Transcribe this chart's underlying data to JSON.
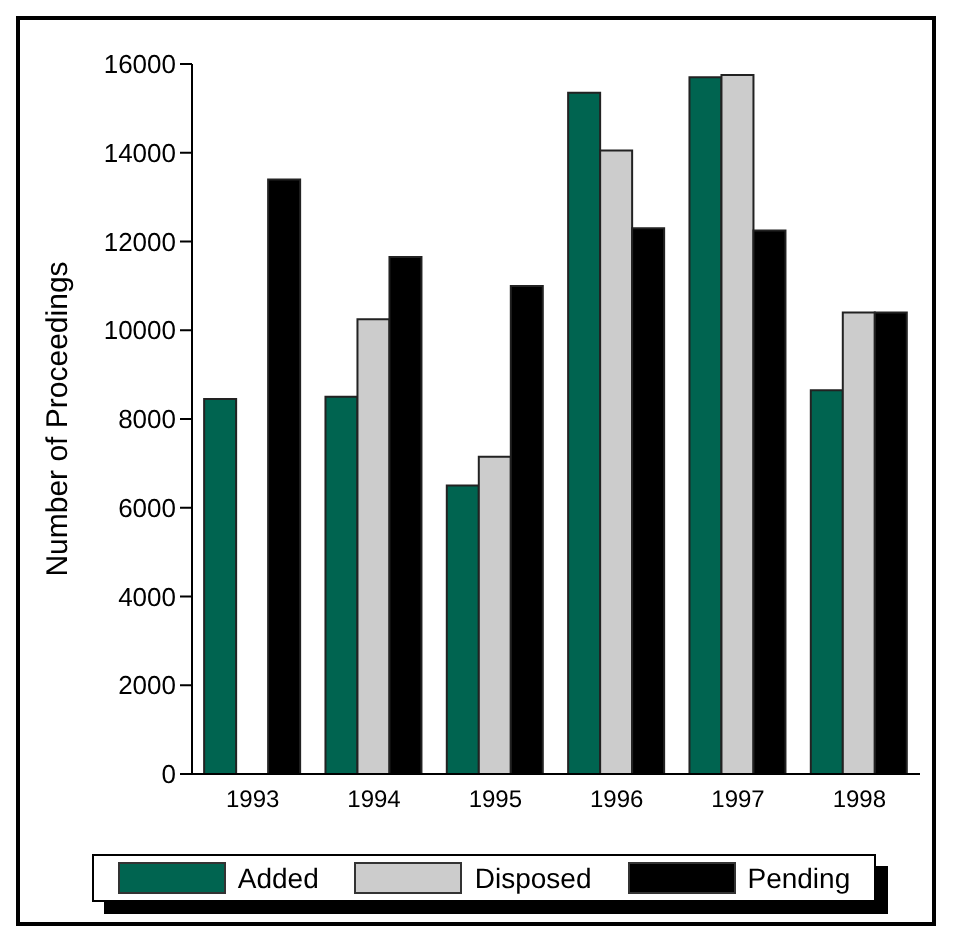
{
  "chart_data": {
    "type": "bar",
    "ylabel": "Number of Proceedings",
    "categories": [
      "1993",
      "1994",
      "1995",
      "1996",
      "1997",
      "1998"
    ],
    "series": [
      {
        "name": "Added",
        "color": "#006450",
        "values": [
          8450,
          8500,
          6500,
          15350,
          15700,
          8650
        ]
      },
      {
        "name": "Disposed",
        "color": "#cccccc",
        "values": [
          0,
          10250,
          7150,
          14050,
          15750,
          10400
        ]
      },
      {
        "name": "Pending",
        "color": "#000000",
        "values": [
          13400,
          11650,
          11000,
          12300,
          12250,
          10400
        ]
      }
    ],
    "ylim": [
      0,
      16000
    ],
    "yticks": [
      0,
      2000,
      4000,
      6000,
      8000,
      10000,
      12000,
      14000,
      16000
    ],
    "grid": false,
    "legend": "bottom"
  }
}
